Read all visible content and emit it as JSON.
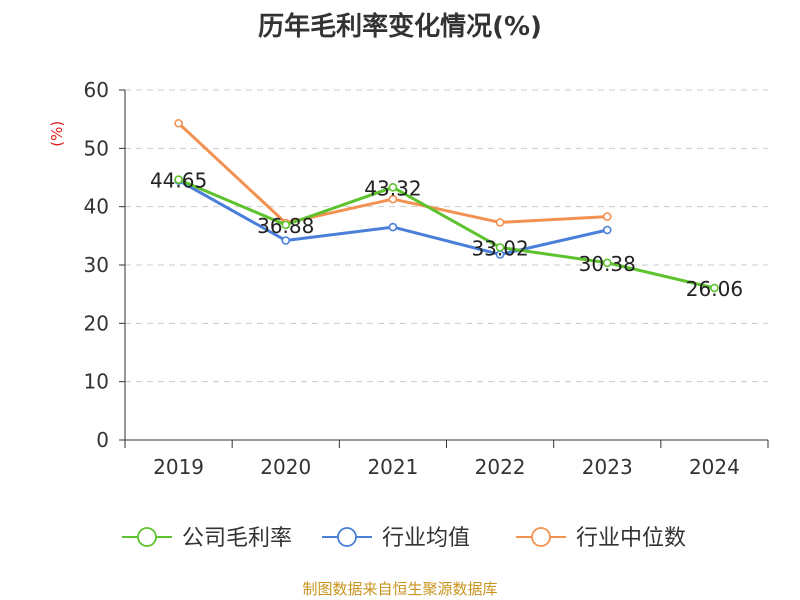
{
  "title": "历年毛利率变化情况(%)",
  "footer": "制图数据来自恒生聚源数据库",
  "chart_data": {
    "type": "line",
    "title": "历年毛利率变化情况(%)",
    "ylabel": "(%)",
    "categories": [
      "2019",
      "2020",
      "2021",
      "2022",
      "2023",
      "2024"
    ],
    "ylim": [
      0,
      60
    ],
    "yticks": [
      0,
      10,
      20,
      30,
      40,
      50,
      60
    ],
    "grid": true,
    "legend_position": "bottom",
    "series": [
      {
        "name": "公司毛利率",
        "color": "#5ec22e",
        "values": [
          44.65,
          36.88,
          43.32,
          33.02,
          30.38,
          26.06
        ],
        "labels": [
          "44.65",
          "36.88",
          "43.32",
          "33.02",
          "30.38",
          "26.06"
        ]
      },
      {
        "name": "行业均值",
        "color": "#4a7fd9",
        "values": [
          44.5,
          34.2,
          36.5,
          31.8,
          36.0,
          null
        ]
      },
      {
        "name": "行业中位数",
        "color": "#f39150",
        "values": [
          54.3,
          37.2,
          41.3,
          37.3,
          38.3,
          null
        ]
      }
    ]
  }
}
